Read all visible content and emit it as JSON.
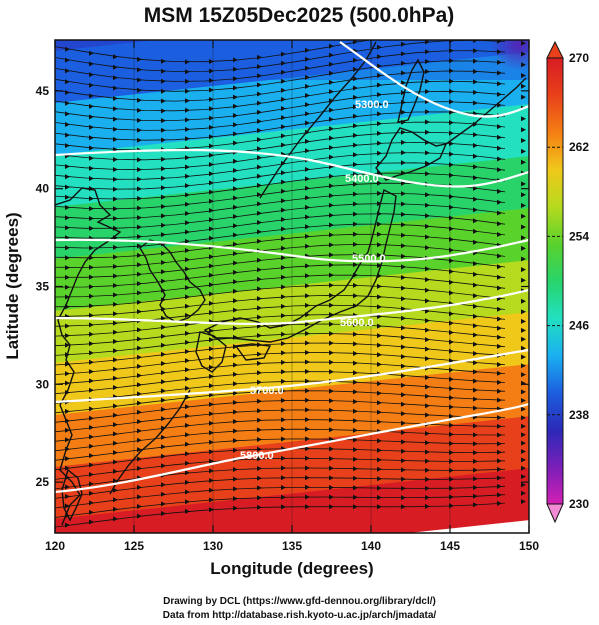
{
  "map": {
    "title": "MSM 15Z05Dec2025 (500.0hPa)",
    "xlabel": "Longitude (degrees)",
    "ylabel": "Latitude  (degrees)",
    "lon_range": [
      120,
      150
    ],
    "lat_range": [
      22.4,
      47.6
    ],
    "lon_ticks": [
      "120",
      "125",
      "130",
      "135",
      "140",
      "145",
      "150"
    ],
    "lat_ticks": [
      "25",
      "30",
      "35",
      "40",
      "45"
    ],
    "colorbar": {
      "min": 230,
      "max": 270,
      "ticks": [
        "270",
        "262",
        "254",
        "246",
        "238",
        "230"
      ],
      "palette": [
        "#d41fb4",
        "#7a1fb8",
        "#2a2ab8",
        "#1c5fe0",
        "#1ab0f0",
        "#22e0c0",
        "#28d46a",
        "#5ad22c",
        "#b6da1e",
        "#f0c81a",
        "#f57e14",
        "#e8401a",
        "#d81c24"
      ]
    },
    "contours": [
      {
        "label": "5300.0"
      },
      {
        "label": "5400.0"
      },
      {
        "label": "5500.0"
      },
      {
        "label": "5600.0"
      },
      {
        "label": "5700.0"
      },
      {
        "label": "5800.0"
      }
    ],
    "wind": "streamlines"
  },
  "credits": {
    "line1": "Drawing by DCL (https://www.gfd-dennou.org/library/dcl/)",
    "line2": "Data from http://database.rish.kyoto-u.ac.jp/arch/jmadata/"
  }
}
